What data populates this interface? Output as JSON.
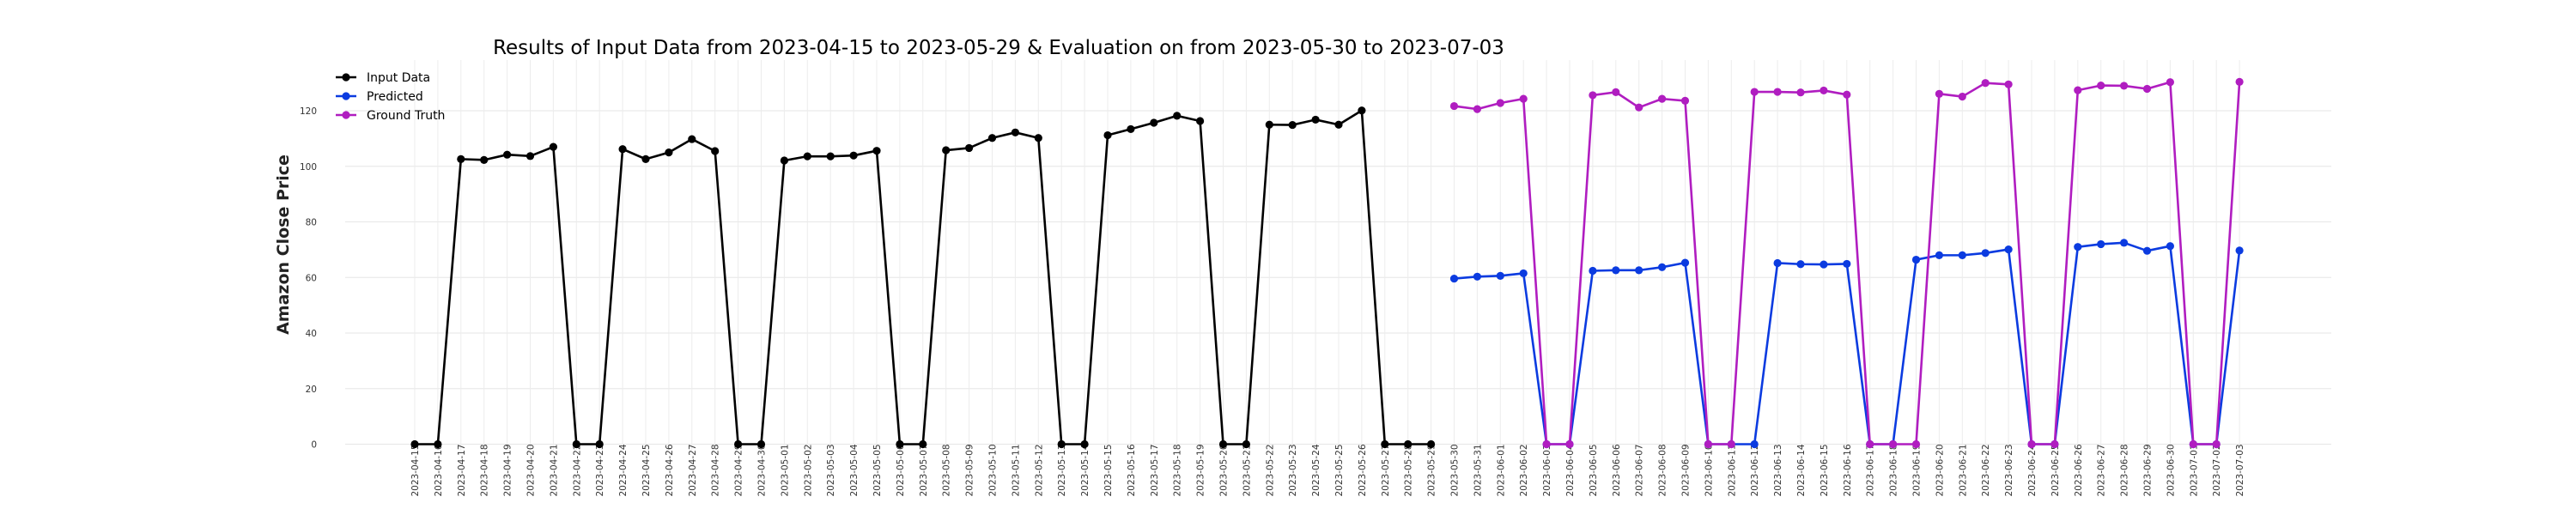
{
  "chart_data": {
    "type": "line",
    "title": "Results of Input Data from 2023-04-15 to 2023-05-29 & Evaluation on from 2023-05-30 to 2023-07-03",
    "xlabel": "",
    "ylabel": "Amazon Close Price",
    "ylim": [
      -8,
      138
    ],
    "yticks": [
      0,
      20,
      40,
      60,
      80,
      100,
      120
    ],
    "grid": true,
    "legend_position": "top-left",
    "x_tick_labels": [
      "2023-04-15",
      "2023-04-16",
      "2023-04-17",
      "2023-04-18",
      "2023-04-19",
      "2023-04-20",
      "2023-04-21",
      "2023-04-22",
      "2023-04-23",
      "2023-04-24",
      "2023-04-25",
      "2023-04-26",
      "2023-04-27",
      "2023-04-28",
      "2023-04-29",
      "2023-04-30",
      "2023-05-01",
      "2023-05-02",
      "2023-05-03",
      "2023-05-04",
      "2023-05-05",
      "2023-05-06",
      "2023-05-07",
      "2023-05-08",
      "2023-05-09",
      "2023-05-10",
      "2023-05-11",
      "2023-05-12",
      "2023-05-13",
      "2023-05-14",
      "2023-05-15",
      "2023-05-16",
      "2023-05-17",
      "2023-05-18",
      "2023-05-19",
      "2023-05-20",
      "2023-05-21",
      "2023-05-22",
      "2023-05-23",
      "2023-05-24",
      "2023-05-25",
      "2023-05-26",
      "2023-05-27",
      "2023-05-28",
      "2023-05-29",
      "2023-05-30",
      "2023-05-31",
      "2023-06-01",
      "2023-06-02",
      "2023-06-03",
      "2023-06-04",
      "2023-06-05",
      "2023-06-06",
      "2023-06-07",
      "2023-06-08",
      "2023-06-09",
      "2023-06-10",
      "2023-06-11",
      "2023-06-12",
      "2023-06-13",
      "2023-06-14",
      "2023-06-15",
      "2023-06-16",
      "2023-06-17",
      "2023-06-18",
      "2023-06-19",
      "2023-06-20",
      "2023-06-21",
      "2023-06-22",
      "2023-06-23",
      "2023-06-24",
      "2023-06-25",
      "2023-06-26",
      "2023-06-27",
      "2023-06-28",
      "2023-06-29",
      "2023-06-30",
      "2023-07-01",
      "2023-07-02",
      "2023-07-03"
    ],
    "series": [
      {
        "name": "Input Data",
        "color": "#000000",
        "x": [
          "2023-04-15",
          "2023-04-16",
          "2023-04-17",
          "2023-04-18",
          "2023-04-19",
          "2023-04-20",
          "2023-04-21",
          "2023-04-22",
          "2023-04-23",
          "2023-04-24",
          "2023-04-25",
          "2023-04-26",
          "2023-04-27",
          "2023-04-28",
          "2023-04-29",
          "2023-04-30",
          "2023-05-01",
          "2023-05-02",
          "2023-05-03",
          "2023-05-04",
          "2023-05-05",
          "2023-05-06",
          "2023-05-07",
          "2023-05-08",
          "2023-05-09",
          "2023-05-10",
          "2023-05-11",
          "2023-05-12",
          "2023-05-13",
          "2023-05-14",
          "2023-05-15",
          "2023-05-16",
          "2023-05-17",
          "2023-05-18",
          "2023-05-19",
          "2023-05-20",
          "2023-05-21",
          "2023-05-22",
          "2023-05-23",
          "2023-05-24",
          "2023-05-25",
          "2023-05-26",
          "2023-05-27",
          "2023-05-28",
          "2023-05-29"
        ],
        "values": [
          0,
          0,
          102.6,
          102.3,
          104.2,
          103.7,
          107.0,
          0,
          0,
          106.2,
          102.6,
          105.0,
          109.8,
          105.5,
          0,
          0,
          102.1,
          103.6,
          103.6,
          103.9,
          105.6,
          0,
          0,
          105.8,
          106.6,
          110.2,
          112.2,
          110.2,
          0,
          0,
          111.2,
          113.4,
          115.7,
          118.2,
          116.3,
          0,
          0,
          115.0,
          114.9,
          116.8,
          115.0,
          120.1,
          0,
          0,
          0
        ]
      },
      {
        "name": "Predicted",
        "color": "#0b3be0",
        "x": [
          "2023-05-30",
          "2023-05-31",
          "2023-06-01",
          "2023-06-02",
          "2023-06-03",
          "2023-06-04",
          "2023-06-05",
          "2023-06-06",
          "2023-06-07",
          "2023-06-08",
          "2023-06-09",
          "2023-06-10",
          "2023-06-11",
          "2023-06-12",
          "2023-06-13",
          "2023-06-14",
          "2023-06-15",
          "2023-06-16",
          "2023-06-17",
          "2023-06-18",
          "2023-06-19",
          "2023-06-20",
          "2023-06-21",
          "2023-06-22",
          "2023-06-23",
          "2023-06-24",
          "2023-06-25",
          "2023-06-26",
          "2023-06-27",
          "2023-06-28",
          "2023-06-29",
          "2023-06-30",
          "2023-07-01",
          "2023-07-02",
          "2023-07-03"
        ],
        "values": [
          59.6,
          60.3,
          60.6,
          61.5,
          0,
          0,
          62.4,
          62.6,
          62.6,
          63.7,
          65.3,
          0,
          0,
          0,
          65.2,
          64.8,
          64.7,
          64.9,
          0,
          0,
          66.4,
          68.0,
          68.0,
          68.8,
          70.1,
          0,
          0,
          71.0,
          72.0,
          72.5,
          69.6,
          71.3,
          0,
          0,
          69.7
        ]
      },
      {
        "name": "Ground Truth",
        "color": "#b01dc0",
        "x": [
          "2023-05-30",
          "2023-05-31",
          "2023-06-01",
          "2023-06-02",
          "2023-06-03",
          "2023-06-04",
          "2023-06-05",
          "2023-06-06",
          "2023-06-07",
          "2023-06-08",
          "2023-06-09",
          "2023-06-10",
          "2023-06-11",
          "2023-06-12",
          "2023-06-13",
          "2023-06-14",
          "2023-06-15",
          "2023-06-16",
          "2023-06-17",
          "2023-06-18",
          "2023-06-19",
          "2023-06-20",
          "2023-06-21",
          "2023-06-22",
          "2023-06-23",
          "2023-06-24",
          "2023-06-25",
          "2023-06-26",
          "2023-06-27",
          "2023-06-28",
          "2023-06-29",
          "2023-06-30",
          "2023-07-01",
          "2023-07-02",
          "2023-07-03"
        ],
        "values": [
          121.7,
          120.6,
          122.8,
          124.3,
          0,
          0,
          125.6,
          126.7,
          121.2,
          124.3,
          123.6,
          0,
          0,
          126.8,
          126.8,
          126.6,
          127.3,
          125.8,
          0,
          0,
          0,
          126.1,
          125.1,
          130.0,
          129.5,
          0,
          0,
          127.4,
          129.1,
          129.0,
          127.9,
          130.3,
          0,
          0,
          130.4
        ]
      }
    ]
  }
}
